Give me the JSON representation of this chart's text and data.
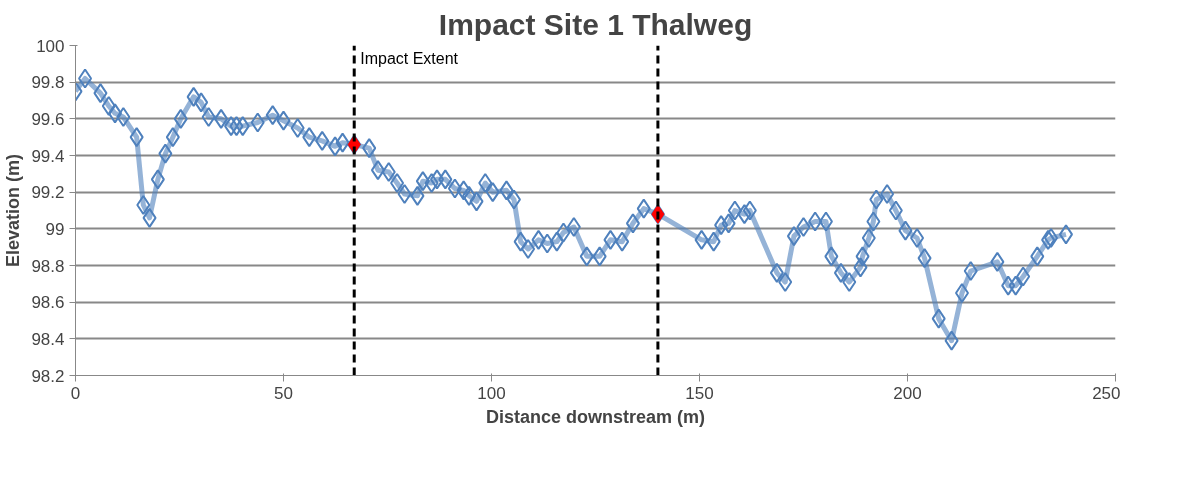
{
  "chart_data": {
    "type": "line",
    "title": "Impact Site 1 Thalweg",
    "xlabel": "Distance downstream (m)",
    "ylabel": "Elevation (m)",
    "xlim": [
      0,
      250
    ],
    "xticks": [
      0,
      50,
      100,
      150,
      200,
      250
    ],
    "ylim": [
      98.2,
      100
    ],
    "yticks": [
      {
        "value": 100,
        "label": "100"
      },
      99.8,
      99.6,
      99.4,
      99.2,
      {
        "value": 99,
        "label": "99"
      },
      98.8,
      98.6,
      98.4,
      98.2
    ],
    "grid": "y",
    "marker": "diamond",
    "line_style": "solid",
    "series": [
      {
        "color": "#4f81bd",
        "x": [
          0,
          2.3,
          6,
          8,
          9.5,
          11.5,
          14.7,
          16.3,
          17.8,
          19.8,
          21.6,
          23.4,
          25.3,
          28.4,
          30.2,
          32,
          35,
          37.4,
          38.7,
          40.2,
          43.8,
          47.4,
          50,
          53.4,
          56.2,
          59.3,
          62.4,
          64.2,
          67,
          70.6,
          72.7,
          75.3,
          77.3,
          79.1,
          82.2,
          83.5,
          85.6,
          86.9,
          88.9,
          91.2,
          93.3,
          94.6,
          96.4,
          98.5,
          100.3,
          103.6,
          105.4,
          107,
          108.8,
          111.3,
          113.4,
          115.7,
          117.3,
          119.8,
          122.9,
          126,
          128.6,
          131.4,
          134,
          136.6,
          140,
          150.5,
          153.4,
          155.2,
          157,
          158.5,
          160.8,
          162.1,
          168.6,
          170.6,
          172.7,
          175,
          177.8,
          180.4,
          181.7,
          184,
          186,
          188.7,
          189.2,
          190.7,
          191.8,
          192.5,
          195.1,
          197.2,
          199.5,
          202.3,
          204.1,
          207.5,
          210.6,
          213.1,
          215.2,
          221.6,
          224.2,
          226,
          227.8,
          231.2,
          233.8,
          234.5,
          238.1
        ],
        "values": [
          99.75,
          99.82,
          99.74,
          99.67,
          99.63,
          99.61,
          99.5,
          99.13,
          99.06,
          99.27,
          99.41,
          99.5,
          99.6,
          99.72,
          99.69,
          99.61,
          99.6,
          99.56,
          99.56,
          99.56,
          99.58,
          99.62,
          99.59,
          99.55,
          99.5,
          99.48,
          99.45,
          99.47,
          99.46,
          99.44,
          99.32,
          99.31,
          99.25,
          99.19,
          99.18,
          99.26,
          99.25,
          99.27,
          99.27,
          99.22,
          99.21,
          99.18,
          99.15,
          99.25,
          99.2,
          99.21,
          99.16,
          98.93,
          98.89,
          98.94,
          98.92,
          98.93,
          98.98,
          99.01,
          98.85,
          98.85,
          98.94,
          98.93,
          99.03,
          99.11,
          99.08,
          98.94,
          98.93,
          99.02,
          99.03,
          99.1,
          99.08,
          99.1,
          98.76,
          98.71,
          98.96,
          99.01,
          99.04,
          99.04,
          98.85,
          98.76,
          98.71,
          98.79,
          98.85,
          98.95,
          99.04,
          99.16,
          99.19,
          99.1,
          98.99,
          98.95,
          98.84,
          98.51,
          98.39,
          98.65,
          98.77,
          98.82,
          98.69,
          98.69,
          98.74,
          98.85,
          98.94,
          98.95,
          98.97
        ]
      },
      {
        "type": "scatter",
        "color": "#ff0000",
        "x": [
          67,
          140
        ],
        "values": [
          99.46,
          99.08
        ]
      }
    ],
    "ref_lines": [
      {
        "axis": "x",
        "value": 67,
        "label": "Impact Extent",
        "color": "#000000",
        "line_style": "dashed"
      },
      {
        "axis": "x",
        "value": 140,
        "label": null,
        "color": "#000000",
        "line_style": "dashed"
      }
    ]
  }
}
